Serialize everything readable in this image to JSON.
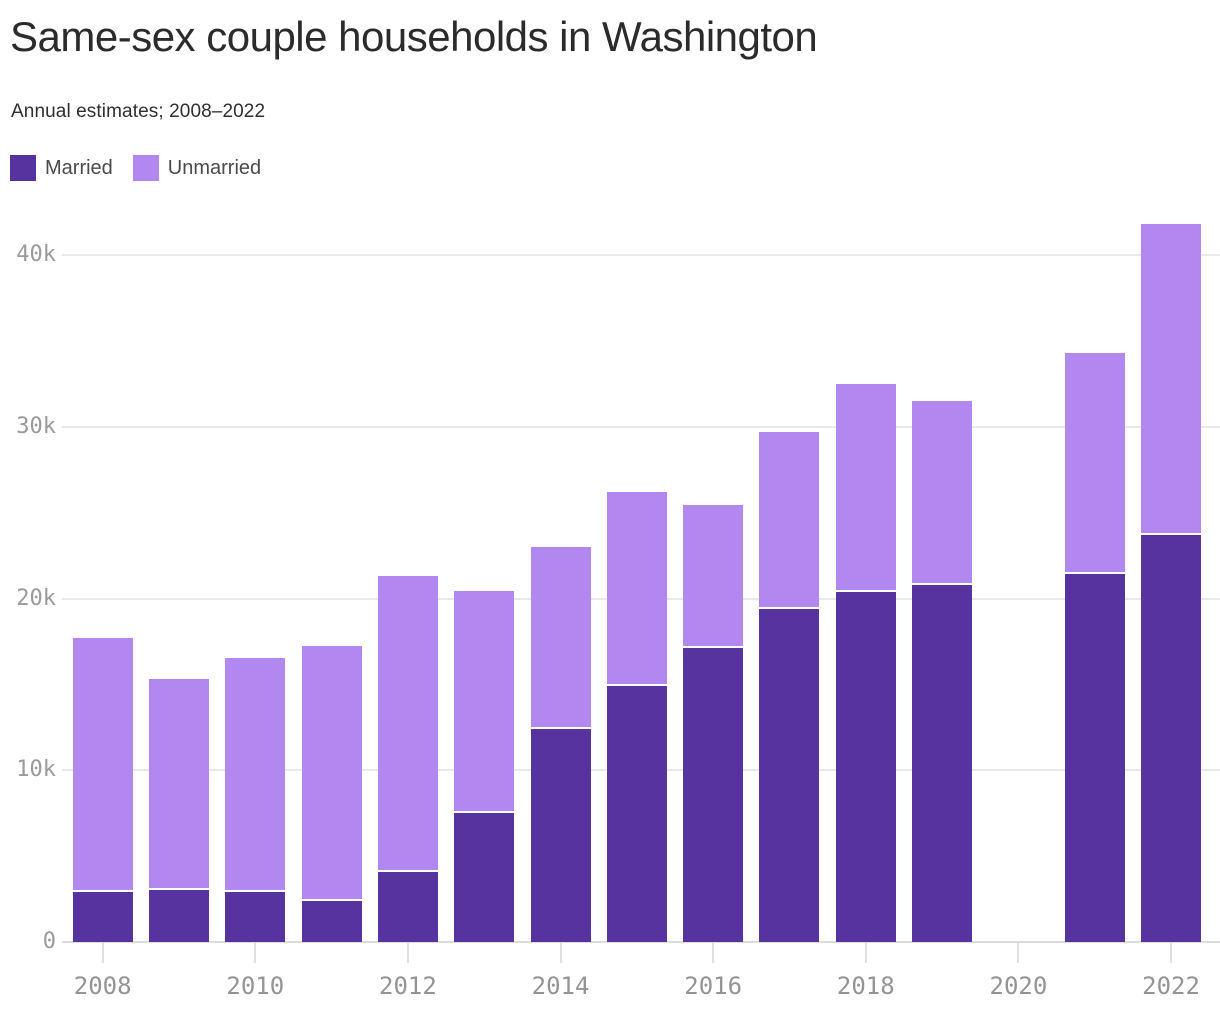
{
  "header": {
    "title": "Same-sex couple households in Washington",
    "subtitle": "Annual estimates; 2008–2022"
  },
  "legend": {
    "items": [
      {
        "label": "Married",
        "color": "#56339e"
      },
      {
        "label": "Unmarried",
        "color": "#b287f0"
      }
    ]
  },
  "chart_data": {
    "type": "bar",
    "stacked": true,
    "title": "Same-sex couple households in Washington",
    "subtitle": "Annual estimates; 2008–2022",
    "categories": [
      2008,
      2009,
      2010,
      2011,
      2012,
      2013,
      2014,
      2015,
      2016,
      2017,
      2018,
      2019,
      2020,
      2021,
      2022
    ],
    "series": [
      {
        "name": "Married",
        "color": "#56339e",
        "values": [
          2900,
          3000,
          2900,
          2400,
          4100,
          7500,
          12400,
          14900,
          17100,
          19400,
          20400,
          20800,
          null,
          21400,
          23700
        ]
      },
      {
        "name": "Unmarried",
        "color": "#b287f0",
        "values": [
          14700,
          12200,
          13500,
          14700,
          17100,
          12800,
          10500,
          11200,
          8200,
          10200,
          12000,
          10600,
          null,
          12800,
          18000
        ]
      }
    ],
    "totals": [
      17600,
      15200,
      16400,
      17100,
      21200,
      20300,
      22900,
      26100,
      25300,
      29600,
      32400,
      31400,
      null,
      34200,
      41700
    ],
    "missing_years": [
      2020
    ],
    "ylim": [
      0,
      42000
    ],
    "yticks": [
      0,
      10000,
      20000,
      30000,
      40000
    ],
    "ytick_labels": [
      "0",
      "10k",
      "20k",
      "30k",
      "40k"
    ],
    "xtick_years": [
      2008,
      2010,
      2012,
      2014,
      2016,
      2018,
      2020,
      2022
    ],
    "grid": "horizontal",
    "legend_position": "top-left",
    "axis_label_color": "#949494",
    "gridline_color": "#e8e8e8"
  }
}
